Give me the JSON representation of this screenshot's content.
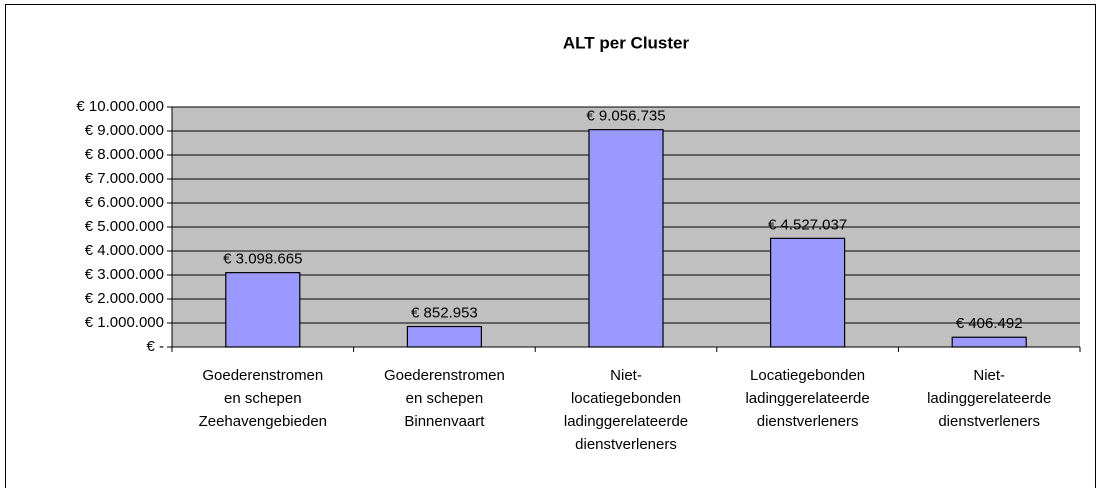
{
  "chart_data": {
    "type": "bar",
    "title": "ALT per Cluster",
    "categories": [
      [
        "Goederenstromen",
        "en schepen",
        "Zeehavengebieden"
      ],
      [
        "Goederenstromen",
        "en schepen",
        "Binnenvaart"
      ],
      [
        "Niet-",
        "locatiegebonden",
        "ladinggerelateerde",
        "dienstverleners"
      ],
      [
        "Locatiegebonden",
        "ladinggerelateerde",
        "dienstverleners"
      ],
      [
        "Niet-",
        "ladinggerelateerde",
        "dienstverleners"
      ]
    ],
    "values": [
      3098665,
      852953,
      9056735,
      4527037,
      406492
    ],
    "value_labels": [
      "€ 3.098.665",
      "€ 852.953",
      "€ 9.056.735",
      "€ 4.527.037",
      "€ 406.492"
    ],
    "color": "#9999ff",
    "plot_background": "#c0c0c0",
    "grid": true,
    "ylim": [
      0,
      10000000
    ],
    "yticks": [
      {
        "value": 0,
        "label": "€ -"
      },
      {
        "value": 1000000,
        "label": "€ 1.000.000"
      },
      {
        "value": 2000000,
        "label": "€ 2.000.000"
      },
      {
        "value": 3000000,
        "label": "€ 3.000.000"
      },
      {
        "value": 4000000,
        "label": "€ 4.000.000"
      },
      {
        "value": 5000000,
        "label": "€ 5.000.000"
      },
      {
        "value": 6000000,
        "label": "€ 6.000.000"
      },
      {
        "value": 7000000,
        "label": "€ 7.000.000"
      },
      {
        "value": 8000000,
        "label": "€ 8.000.000"
      },
      {
        "value": 9000000,
        "label": "€ 9.000.000"
      },
      {
        "value": 10000000,
        "label": "€ 10.000.000"
      }
    ]
  }
}
